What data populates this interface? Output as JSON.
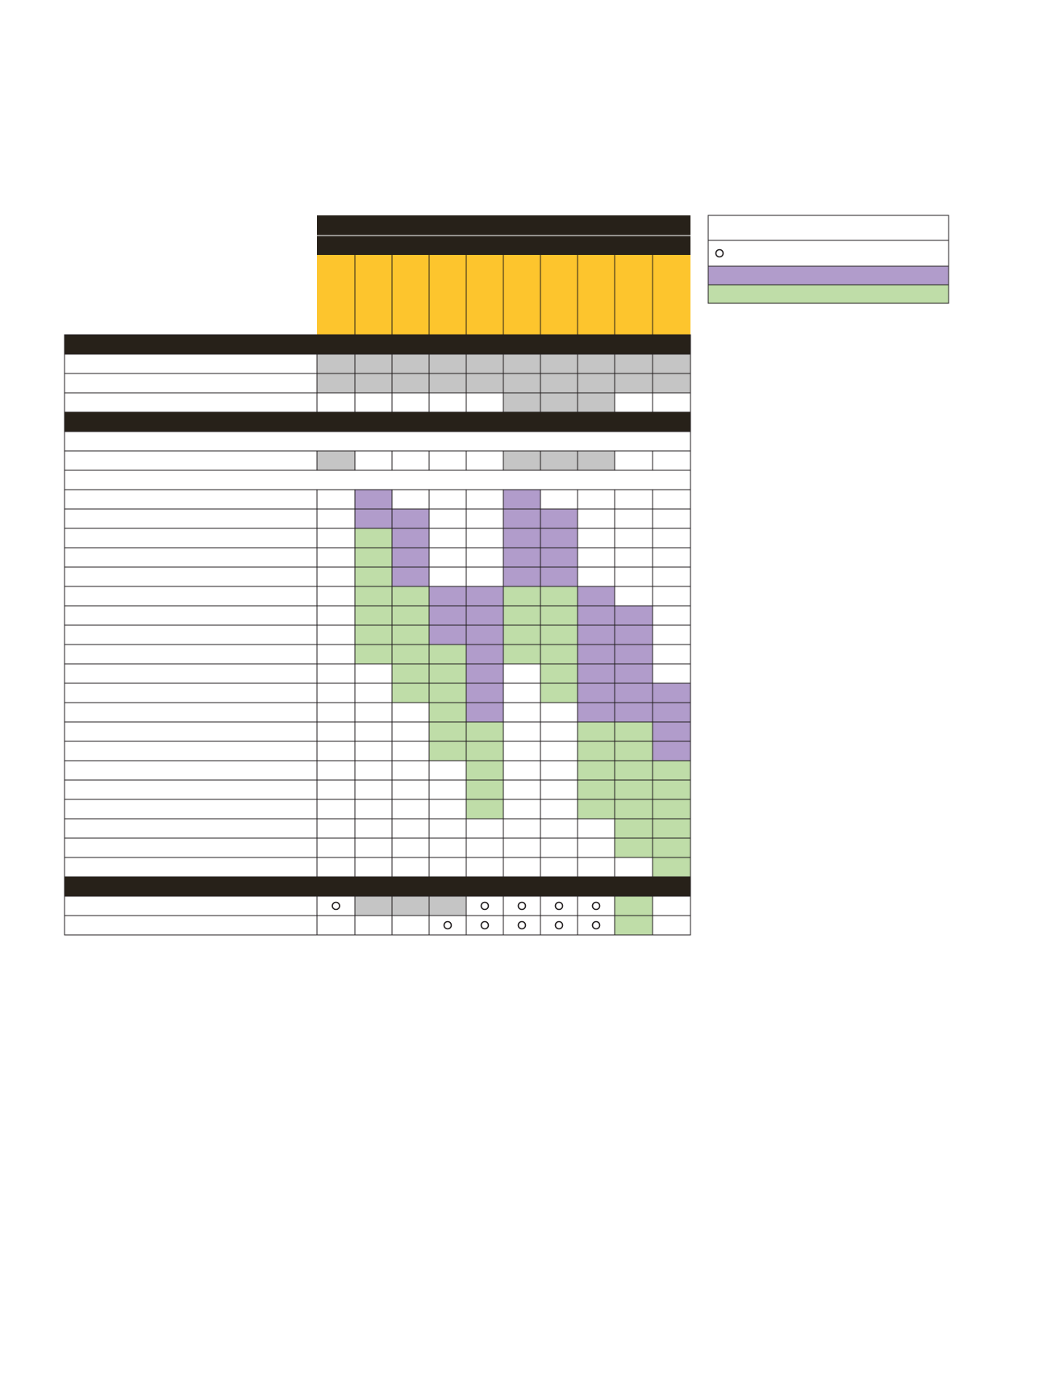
{
  "colors": {
    "header_band": "#272119",
    "column_header": "#fdc52d",
    "gray_cell": "#c5c5c5",
    "purple_cell": "#b19ccb",
    "green_cell": "#bfdda8",
    "white_cell": "#ffffff",
    "grid": "#231f20"
  },
  "legend": {
    "items": [
      {
        "type": "blank"
      },
      {
        "type": "circle",
        "icon": "circle-marker-icon"
      },
      {
        "type": "purple"
      },
      {
        "type": "green"
      }
    ]
  },
  "matrix": {
    "column_count": 10,
    "cell_codes": {
      "w": "white",
      "g": "gray",
      "p": "purple",
      "n": "green",
      "o": "circle",
      "-": "span"
    },
    "sections": [
      {
        "rows": [
          {
            "cells": "gggggggggg"
          },
          {
            "cells": "gggggggggg"
          },
          {
            "cells": "wwwwwgggww"
          }
        ]
      },
      {
        "rows": [
          {
            "cells": "----------"
          },
          {
            "cells": "gwwwwgggww"
          },
          {
            "cells": "----------"
          },
          {
            "cells": "wpwwwpwwww"
          },
          {
            "cells": "wppwwppwww"
          },
          {
            "cells": "wnpwwppwww"
          },
          {
            "cells": "wnpwwppwww"
          },
          {
            "cells": "wnpwwppwww"
          },
          {
            "cells": "wnnppnnpww"
          },
          {
            "cells": "wnnppnnppw"
          },
          {
            "cells": "wnnppnnppw"
          },
          {
            "cells": "wnnnpnnppw"
          },
          {
            "cells": "wwnnpwnppw"
          },
          {
            "cells": "wwnnpwnppp"
          },
          {
            "cells": "wwwnpwwppp"
          },
          {
            "cells": "wwwnnwwnnp"
          },
          {
            "cells": "wwwnnwwnnp"
          },
          {
            "cells": "wwwwnwwnnn"
          },
          {
            "cells": "wwwwnwwnnn"
          },
          {
            "cells": "wwwwnwwnnn"
          },
          {
            "cells": "wwwwwwwwnn"
          },
          {
            "cells": "wwwwwwwwnn"
          },
          {
            "cells": "wwwwwwwwwn"
          }
        ]
      },
      {
        "rows": [
          {
            "cells": "ogggoooonw"
          },
          {
            "cells": "wwwooooonw"
          }
        ]
      }
    ]
  }
}
